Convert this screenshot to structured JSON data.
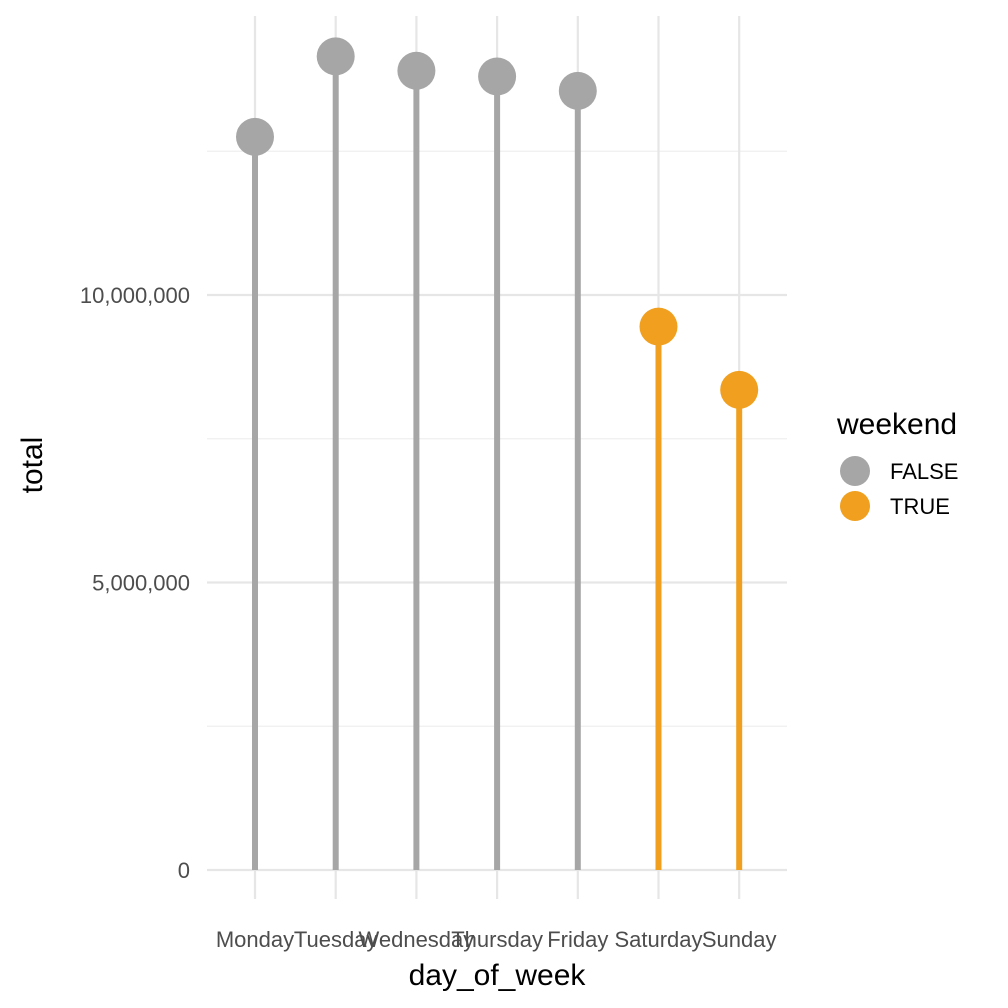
{
  "chart_data": {
    "type": "lollipop",
    "title": "",
    "xlabel": "day_of_week",
    "ylabel": "total",
    "categories": [
      "Monday",
      "Tuesday",
      "Wednesday",
      "Thursday",
      "Friday",
      "Saturday",
      "Sunday"
    ],
    "values": [
      12750000,
      14150000,
      13900000,
      13800000,
      13550000,
      9450000,
      8350000
    ],
    "groups": [
      "FALSE",
      "FALSE",
      "FALSE",
      "FALSE",
      "FALSE",
      "TRUE",
      "TRUE"
    ],
    "ylim": [
      -500000,
      14900000
    ],
    "y_ticks": [
      0,
      5000000,
      10000000
    ],
    "y_tick_labels": [
      "0",
      "5,000,000",
      "10,000,000"
    ],
    "grid": true,
    "legend": {
      "title": "weekend",
      "position": "right",
      "entries": [
        {
          "label": "FALSE",
          "color": "#a6a6a6"
        },
        {
          "label": "TRUE",
          "color": "#f0a01e"
        }
      ]
    },
    "colors": {
      "FALSE": "#a6a6a6",
      "TRUE": "#f0a01e"
    }
  }
}
